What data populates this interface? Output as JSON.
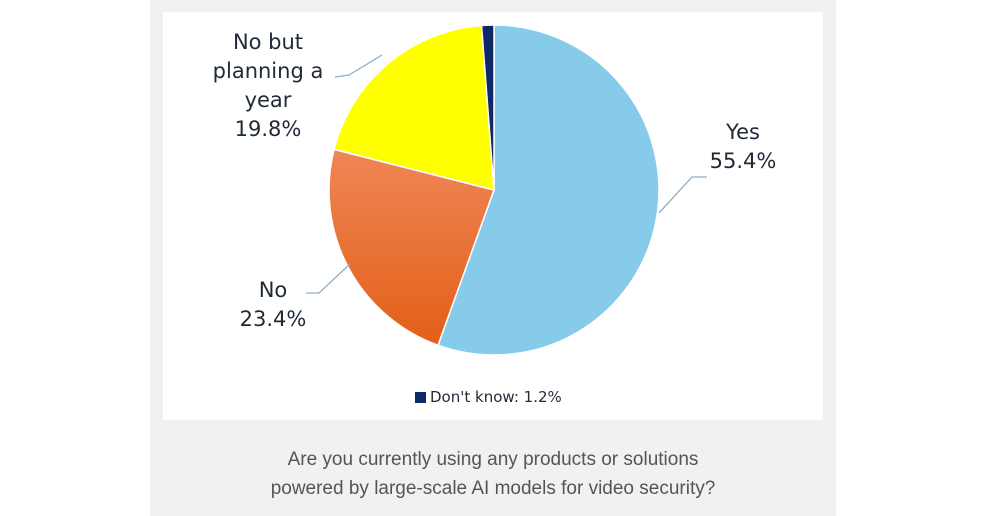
{
  "chart_data": {
    "type": "pie",
    "title": "",
    "caption": "Are you currently using any products or solutions powered by large-scale AI models for video security?",
    "slices": [
      {
        "label": "Yes",
        "value": 55.4,
        "display": "55.4%",
        "color": "#86cbea"
      },
      {
        "label": "No",
        "value": 23.4,
        "display": "23.4%",
        "color": "#ee7a3a"
      },
      {
        "label": "No but planning a year",
        "value": 19.8,
        "display": "19.8%",
        "color": "#ffff00"
      },
      {
        "label": "Don't know",
        "value": 1.2,
        "display": "1.2%",
        "color": "#0d2a66"
      }
    ],
    "legend": [
      {
        "label": "Don't know: 1.2%",
        "color": "#0d2a66"
      }
    ],
    "legend_position": "bottom",
    "start_angle": "12 o'clock, clockwise"
  },
  "labels": {
    "yes_name": "Yes",
    "yes_pct": "55.4%",
    "no_name": "No",
    "no_pct": "23.4%",
    "planning_line1": "No but",
    "planning_line2": "planning a",
    "planning_line3": "year",
    "planning_pct": "19.8%",
    "dont_know_legend": "Don't know: 1.2%"
  },
  "caption": {
    "line1": "Are you currently using any products or solutions",
    "line2": "powered by large-scale AI models for video security?"
  }
}
